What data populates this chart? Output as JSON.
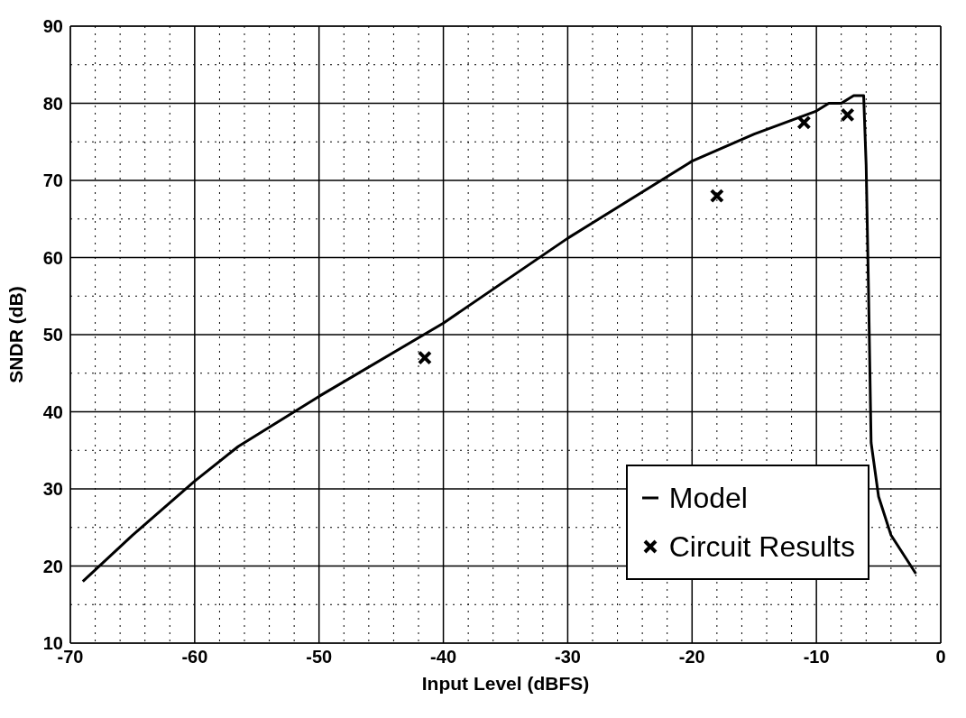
{
  "chart_data": {
    "type": "line",
    "xlabel": "Input Level (dBFS)",
    "ylabel": "SNDR (dB)",
    "xlim": [
      -70,
      0
    ],
    "ylim": [
      10,
      90
    ],
    "xticks": [
      -70,
      -60,
      -50,
      -40,
      -30,
      -20,
      -10,
      0
    ],
    "yticks": [
      10,
      20,
      30,
      40,
      50,
      60,
      70,
      80,
      90
    ],
    "grid": true,
    "legend": "bottom right",
    "series": [
      {
        "name": "Model",
        "color": "#000000",
        "marker": "none",
        "line_style": "solid",
        "x": [
          -69,
          -65,
          -60,
          -56.5,
          -50,
          -40,
          -30,
          -20,
          -15,
          -10,
          -9,
          -8,
          -7,
          -6.2,
          -6,
          -5.8,
          -5.6,
          -5,
          -4,
          -2
        ],
        "values": [
          18,
          24,
          31,
          35.5,
          42,
          51.5,
          62.5,
          72.5,
          76,
          79,
          80,
          80,
          81,
          81,
          72,
          55,
          36,
          29,
          24,
          19
        ]
      },
      {
        "name": "Circuit Results",
        "type": "scatter",
        "color": "#000000",
        "marker": "cross",
        "x": [
          -41.5,
          -18,
          -11,
          -7.5
        ],
        "values": [
          47,
          68,
          77.5,
          78.5
        ]
      }
    ]
  }
}
